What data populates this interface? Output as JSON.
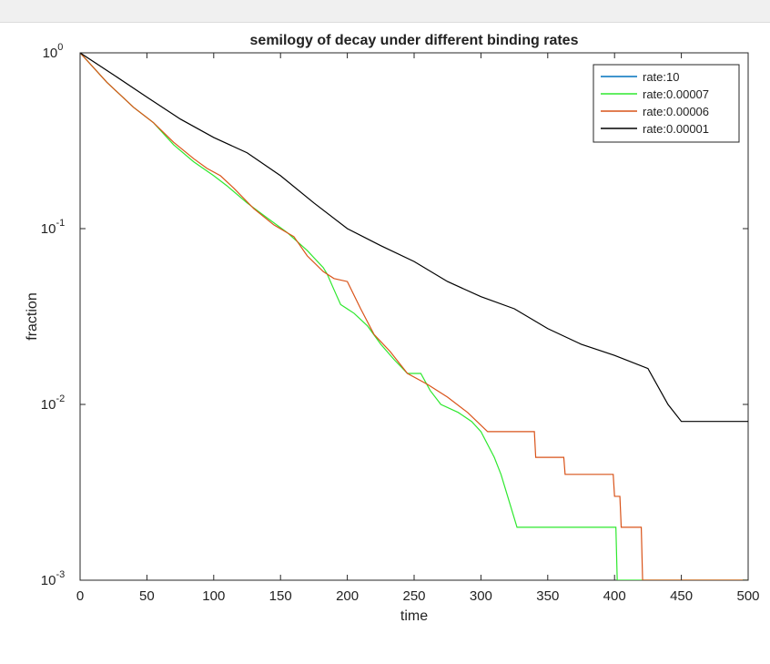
{
  "chart_data": {
    "type": "line",
    "title": "semilogy of decay under different binding rates",
    "xlabel": "time",
    "ylabel": "fraction",
    "xlim": [
      0,
      500
    ],
    "ylim": [
      0.001,
      1
    ],
    "yscale": "log",
    "grid": false,
    "legend_position": "top-right",
    "x_ticks": [
      0,
      50,
      100,
      150,
      200,
      250,
      300,
      350,
      400,
      450,
      500
    ],
    "y_ticks": [
      {
        "value": 0.001,
        "base": "10",
        "exp": "-3"
      },
      {
        "value": 0.01,
        "base": "10",
        "exp": "-2"
      },
      {
        "value": 0.1,
        "base": "10",
        "exp": "-1"
      },
      {
        "value": 1,
        "base": "10",
        "exp": "0"
      }
    ],
    "series": [
      {
        "name": "rate:10",
        "color": "#0072bd",
        "points": [
          [
            0,
            1.0
          ],
          [
            1,
            0.995
          ]
        ]
      },
      {
        "name": "rate:0.00007",
        "color": "#2ee82e",
        "points": [
          [
            0,
            1.0
          ],
          [
            20,
            0.68
          ],
          [
            40,
            0.49
          ],
          [
            55,
            0.4
          ],
          [
            70,
            0.3
          ],
          [
            85,
            0.24
          ],
          [
            100,
            0.2
          ],
          [
            110,
            0.175
          ],
          [
            125,
            0.14
          ],
          [
            140,
            0.115
          ],
          [
            155,
            0.095
          ],
          [
            170,
            0.075
          ],
          [
            182,
            0.06
          ],
          [
            185,
            0.055
          ],
          [
            190,
            0.045
          ],
          [
            195,
            0.037
          ],
          [
            205,
            0.033
          ],
          [
            215,
            0.028
          ],
          [
            225,
            0.022
          ],
          [
            235,
            0.018
          ],
          [
            245,
            0.015
          ],
          [
            255,
            0.015
          ],
          [
            262,
            0.012
          ],
          [
            270,
            0.01
          ],
          [
            283,
            0.009
          ],
          [
            293,
            0.008
          ],
          [
            300,
            0.007
          ],
          [
            310,
            0.005
          ],
          [
            315,
            0.004
          ],
          [
            320,
            0.003
          ],
          [
            327,
            0.002
          ],
          [
            360,
            0.002
          ],
          [
            401,
            0.002
          ],
          [
            402,
            0.001
          ],
          [
            500,
            0.001
          ]
        ]
      },
      {
        "name": "rate:0.00006",
        "color": "#d95319",
        "points": [
          [
            0,
            1.0
          ],
          [
            20,
            0.68
          ],
          [
            40,
            0.49
          ],
          [
            55,
            0.4
          ],
          [
            70,
            0.31
          ],
          [
            85,
            0.25
          ],
          [
            95,
            0.22
          ],
          [
            105,
            0.2
          ],
          [
            115,
            0.17
          ],
          [
            130,
            0.13
          ],
          [
            145,
            0.105
          ],
          [
            160,
            0.09
          ],
          [
            170,
            0.07
          ],
          [
            182,
            0.057
          ],
          [
            190,
            0.052
          ],
          [
            200,
            0.05
          ],
          [
            210,
            0.035
          ],
          [
            220,
            0.025
          ],
          [
            232,
            0.02
          ],
          [
            245,
            0.015
          ],
          [
            260,
            0.013
          ],
          [
            275,
            0.011
          ],
          [
            290,
            0.009
          ],
          [
            305,
            0.007
          ],
          [
            340,
            0.007
          ],
          [
            341,
            0.005
          ],
          [
            362,
            0.005
          ],
          [
            363,
            0.004
          ],
          [
            399,
            0.004
          ],
          [
            400,
            0.003
          ],
          [
            404,
            0.003
          ],
          [
            405,
            0.002
          ],
          [
            420,
            0.002
          ],
          [
            421,
            0.001
          ],
          [
            500,
            0.001
          ]
        ]
      },
      {
        "name": "rate:0.00001",
        "color": "#000000",
        "points": [
          [
            0,
            1.0
          ],
          [
            25,
            0.75
          ],
          [
            50,
            0.56
          ],
          [
            75,
            0.42
          ],
          [
            100,
            0.33
          ],
          [
            125,
            0.27
          ],
          [
            150,
            0.2
          ],
          [
            175,
            0.14
          ],
          [
            200,
            0.1
          ],
          [
            225,
            0.08
          ],
          [
            250,
            0.065
          ],
          [
            275,
            0.05
          ],
          [
            300,
            0.041
          ],
          [
            325,
            0.035
          ],
          [
            350,
            0.027
          ],
          [
            375,
            0.022
          ],
          [
            400,
            0.019
          ],
          [
            425,
            0.016
          ],
          [
            440,
            0.01
          ],
          [
            450,
            0.008
          ],
          [
            500,
            0.008
          ]
        ]
      }
    ]
  }
}
